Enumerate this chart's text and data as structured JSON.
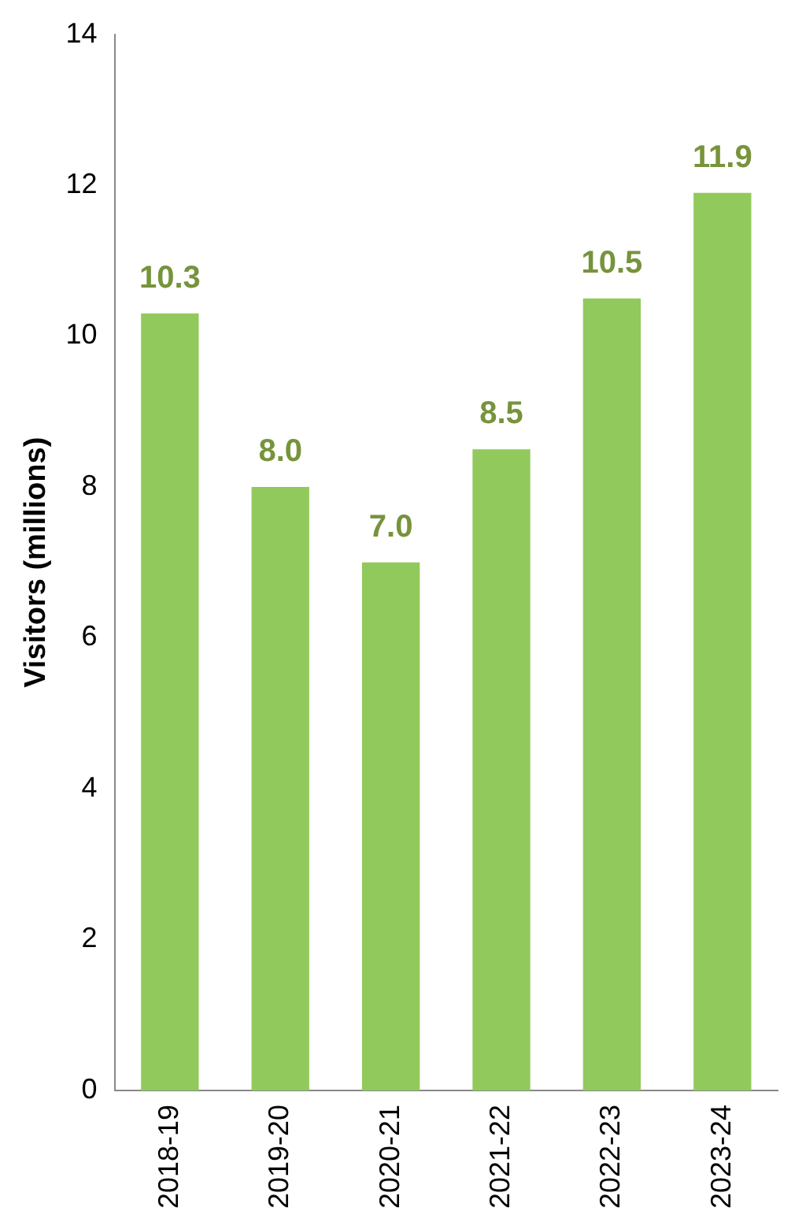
{
  "chart_data": {
    "type": "bar",
    "ylabel": "Visitors (millions)",
    "categories": [
      "2018-19",
      "2019-20",
      "2020-21",
      "2021-22",
      "2022-23",
      "2023-24"
    ],
    "values": [
      10.3,
      8.0,
      7.0,
      8.5,
      10.5,
      11.9
    ],
    "color": "#92c95c",
    "value_labels": [
      "10.3",
      "8.0",
      "7.0",
      "8.5",
      "10.5",
      "11.9"
    ],
    "ylim": [
      0,
      14
    ],
    "yticks": [
      0,
      2,
      4,
      6,
      8,
      10,
      12,
      14
    ],
    "grid": false,
    "legend": false
  }
}
